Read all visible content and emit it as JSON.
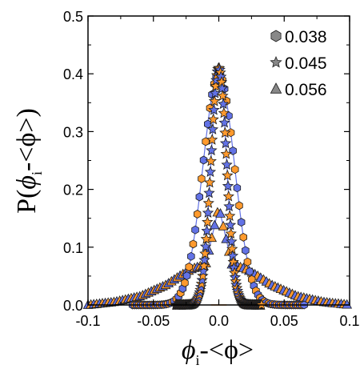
{
  "chart_data": {
    "type": "scatter",
    "xlabel": {
      "main": "ϕ",
      "sub": "i",
      "rest": "-<ϕ>"
    },
    "ylabel": {
      "prefix": "P(",
      "main": "ϕ",
      "sub": "i",
      "rest": "-<ϕ>)"
    },
    "xlim": [
      -0.1,
      0.1
    ],
    "ylim": [
      0.0,
      0.5
    ],
    "xticks": [
      -0.1,
      -0.05,
      0.0,
      0.05,
      0.1
    ],
    "xtick_labels": [
      "-0.1",
      "-0.05",
      "0.0",
      "0.05",
      "0.1"
    ],
    "yticks": [
      0.0,
      0.1,
      0.2,
      0.3,
      0.4,
      0.5
    ],
    "ytick_labels": [
      "0.0",
      "0.1",
      "0.2",
      "0.3",
      "0.4",
      "0.5"
    ],
    "grid": false,
    "legend_position": "top-right",
    "series": [
      {
        "name": "0.038",
        "marker": "hexagon",
        "legend_color": "#888888",
        "colors": [
          "#6272e6",
          "#ff9a2e"
        ],
        "peak": 0.4,
        "sigma": 0.012,
        "x": [
          -0.06,
          -0.05,
          -0.04,
          -0.03,
          -0.025,
          -0.02,
          -0.015,
          -0.01,
          -0.005,
          0.0,
          0.005,
          0.01,
          0.015,
          0.02,
          0.025,
          0.03,
          0.04,
          0.05,
          0.06
        ],
        "y": [
          0.0,
          0.0,
          0.01,
          0.04,
          0.08,
          0.15,
          0.24,
          0.33,
          0.38,
          0.4,
          0.38,
          0.33,
          0.24,
          0.15,
          0.08,
          0.04,
          0.01,
          0.0,
          0.0
        ]
      },
      {
        "name": "0.045",
        "marker": "star",
        "legend_color": "#888888",
        "colors": [
          "#ff9a2e",
          "#6272e6"
        ],
        "peak": 0.41,
        "sigma": 0.006,
        "x": [
          -0.03,
          -0.02,
          -0.015,
          -0.01,
          -0.005,
          0.0,
          0.005,
          0.01,
          0.015,
          0.02,
          0.03
        ],
        "y": [
          0.0,
          0.0,
          0.02,
          0.1,
          0.28,
          0.41,
          0.28,
          0.1,
          0.02,
          0.0,
          0.0
        ]
      },
      {
        "name": "0.056",
        "marker": "triangle",
        "legend_color": "#888888",
        "colors": [
          "#6272e6",
          "#ff9a2e"
        ],
        "x": [
          -0.1,
          -0.08,
          -0.06,
          -0.04,
          -0.03,
          -0.02,
          -0.01,
          0.0,
          0.01,
          0.02,
          0.03,
          0.04,
          0.06,
          0.08,
          0.1
        ],
        "y": [
          0.0,
          0.005,
          0.015,
          0.035,
          0.05,
          0.063,
          0.07,
          0.17,
          0.07,
          0.063,
          0.05,
          0.035,
          0.015,
          0.005,
          0.0
        ]
      }
    ]
  }
}
